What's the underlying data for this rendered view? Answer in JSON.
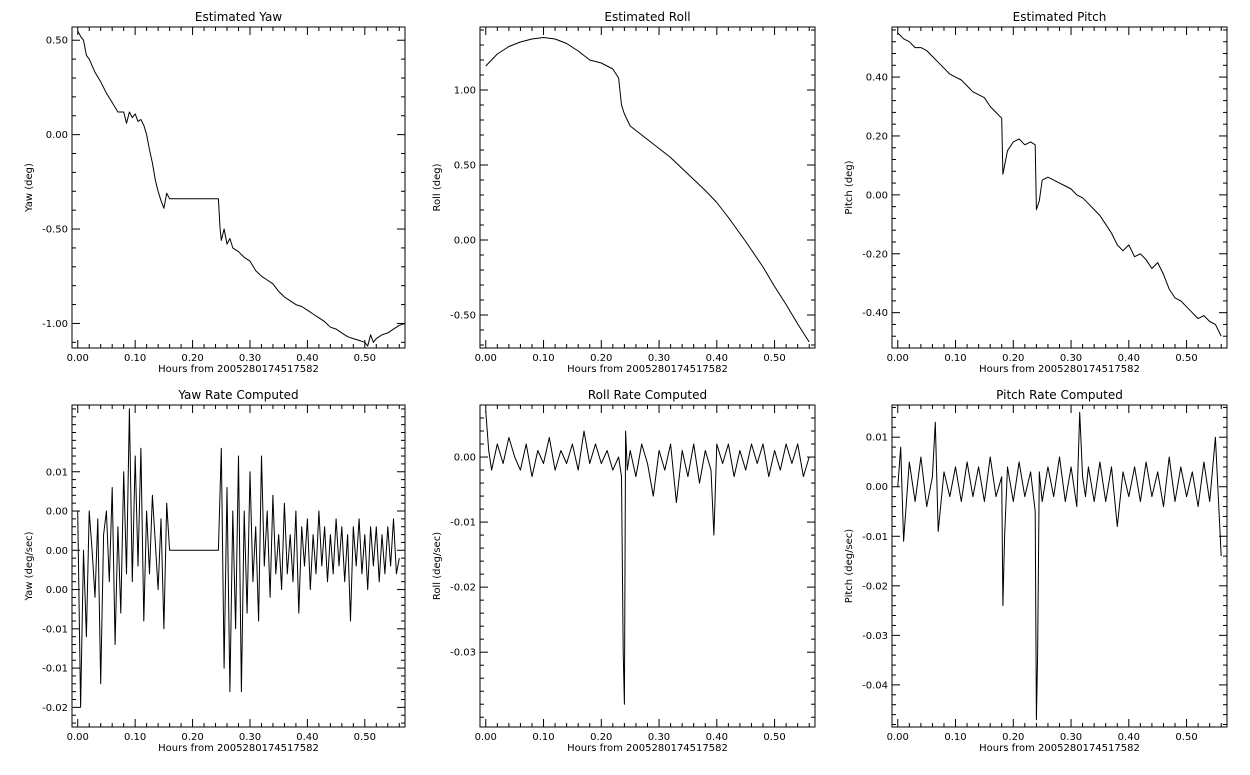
{
  "chart_data": [
    {
      "type": "line",
      "title": "Estimated Yaw",
      "xlabel": "Hours from 2005280174517582",
      "ylabel": "Yaw (deg)",
      "xlim": [
        -0.01,
        0.57
      ],
      "ylim": [
        -1.13,
        0.57
      ],
      "xticks": [
        0.0,
        0.1,
        0.2,
        0.3,
        0.4,
        0.5
      ],
      "xtick_labels": [
        "0.00",
        "0.10",
        "0.20",
        "0.30",
        "0.40",
        "0.50"
      ],
      "yticks": [
        -1.0,
        -0.5,
        0.0,
        0.5
      ],
      "ytick_labels": [
        "-1.00",
        "-0.50",
        "0.00",
        "0.50"
      ],
      "series": [
        {
          "x": [
            0.0,
            0.005,
            0.01,
            0.015,
            0.02,
            0.03,
            0.04,
            0.05,
            0.06,
            0.07,
            0.08,
            0.085,
            0.09,
            0.095,
            0.1,
            0.105,
            0.11,
            0.115,
            0.12,
            0.125,
            0.13,
            0.135,
            0.14,
            0.145,
            0.15,
            0.155,
            0.16,
            0.2,
            0.245,
            0.248,
            0.25,
            0.255,
            0.26,
            0.265,
            0.27,
            0.28,
            0.29,
            0.3,
            0.31,
            0.32,
            0.33,
            0.34,
            0.35,
            0.36,
            0.37,
            0.38,
            0.39,
            0.4,
            0.41,
            0.42,
            0.43,
            0.44,
            0.45,
            0.46,
            0.47,
            0.48,
            0.49,
            0.5,
            0.505,
            0.51,
            0.515,
            0.52,
            0.53,
            0.54,
            0.55,
            0.56,
            0.57
          ],
          "y": [
            0.55,
            0.52,
            0.5,
            0.42,
            0.4,
            0.33,
            0.28,
            0.22,
            0.17,
            0.12,
            0.12,
            0.06,
            0.12,
            0.09,
            0.11,
            0.07,
            0.08,
            0.05,
            0.0,
            -0.08,
            -0.15,
            -0.24,
            -0.3,
            -0.35,
            -0.39,
            -0.31,
            -0.34,
            -0.34,
            -0.34,
            -0.5,
            -0.56,
            -0.5,
            -0.58,
            -0.55,
            -0.6,
            -0.62,
            -0.65,
            -0.67,
            -0.72,
            -0.75,
            -0.77,
            -0.79,
            -0.83,
            -0.86,
            -0.88,
            -0.9,
            -0.91,
            -0.93,
            -0.95,
            -0.97,
            -0.99,
            -1.02,
            -1.03,
            -1.05,
            -1.07,
            -1.08,
            -1.09,
            -1.1,
            -1.12,
            -1.06,
            -1.1,
            -1.08,
            -1.06,
            -1.05,
            -1.03,
            -1.01,
            -1.0
          ]
        }
      ]
    },
    {
      "type": "line",
      "title": "Estimated Roll",
      "xlabel": "Hours from 2005280174517582",
      "ylabel": "Roll (deg)",
      "xlim": [
        -0.01,
        0.57
      ],
      "ylim": [
        -0.72,
        1.42
      ],
      "xticks": [
        0.0,
        0.1,
        0.2,
        0.3,
        0.4,
        0.5
      ],
      "xtick_labels": [
        "0.00",
        "0.10",
        "0.20",
        "0.30",
        "0.40",
        "0.50"
      ],
      "yticks": [
        -0.5,
        0.0,
        0.5,
        1.0
      ],
      "ytick_labels": [
        "-0.50",
        "0.00",
        "0.50",
        "1.00"
      ],
      "series": [
        {
          "x": [
            0.0,
            0.02,
            0.04,
            0.06,
            0.08,
            0.1,
            0.12,
            0.14,
            0.16,
            0.18,
            0.2,
            0.22,
            0.23,
            0.235,
            0.24,
            0.25,
            0.28,
            0.3,
            0.32,
            0.35,
            0.38,
            0.4,
            0.42,
            0.45,
            0.48,
            0.5,
            0.52,
            0.54,
            0.56
          ],
          "y": [
            1.16,
            1.24,
            1.29,
            1.32,
            1.34,
            1.35,
            1.34,
            1.31,
            1.26,
            1.2,
            1.18,
            1.14,
            1.08,
            0.9,
            0.84,
            0.76,
            0.67,
            0.61,
            0.55,
            0.44,
            0.33,
            0.25,
            0.15,
            -0.01,
            -0.18,
            -0.31,
            -0.43,
            -0.56,
            -0.68
          ]
        }
      ]
    },
    {
      "type": "line",
      "title": "Estimated Pitch",
      "xlabel": "Hours from 2005280174517582",
      "ylabel": "Pitch (deg)",
      "xlim": [
        -0.01,
        0.57
      ],
      "ylim": [
        -0.52,
        0.57
      ],
      "xticks": [
        0.0,
        0.1,
        0.2,
        0.3,
        0.4,
        0.5
      ],
      "xtick_labels": [
        "0.00",
        "0.10",
        "0.20",
        "0.30",
        "0.40",
        "0.50"
      ],
      "yticks": [
        -0.4,
        -0.2,
        0.0,
        0.2,
        0.4
      ],
      "ytick_labels": [
        "-0.40",
        "-0.20",
        "0.00",
        "0.20",
        "0.40"
      ],
      "series": [
        {
          "x": [
            0.0,
            0.01,
            0.02,
            0.03,
            0.04,
            0.05,
            0.06,
            0.07,
            0.08,
            0.09,
            0.1,
            0.11,
            0.12,
            0.13,
            0.14,
            0.15,
            0.16,
            0.17,
            0.18,
            0.182,
            0.185,
            0.19,
            0.2,
            0.21,
            0.22,
            0.23,
            0.238,
            0.24,
            0.245,
            0.25,
            0.26,
            0.27,
            0.28,
            0.29,
            0.3,
            0.31,
            0.32,
            0.33,
            0.34,
            0.35,
            0.36,
            0.37,
            0.38,
            0.39,
            0.4,
            0.41,
            0.42,
            0.43,
            0.44,
            0.45,
            0.46,
            0.47,
            0.48,
            0.49,
            0.5,
            0.51,
            0.52,
            0.53,
            0.54,
            0.55,
            0.56
          ],
          "y": [
            0.55,
            0.53,
            0.52,
            0.5,
            0.5,
            0.49,
            0.47,
            0.45,
            0.43,
            0.41,
            0.4,
            0.39,
            0.37,
            0.35,
            0.34,
            0.33,
            0.3,
            0.28,
            0.26,
            0.07,
            0.1,
            0.15,
            0.18,
            0.19,
            0.17,
            0.18,
            0.17,
            -0.05,
            -0.02,
            0.05,
            0.06,
            0.05,
            0.04,
            0.03,
            0.02,
            0.0,
            -0.01,
            -0.03,
            -0.05,
            -0.07,
            -0.1,
            -0.13,
            -0.17,
            -0.19,
            -0.17,
            -0.21,
            -0.2,
            -0.22,
            -0.25,
            -0.23,
            -0.27,
            -0.32,
            -0.35,
            -0.36,
            -0.38,
            -0.4,
            -0.42,
            -0.41,
            -0.43,
            -0.44,
            -0.48
          ]
        }
      ]
    },
    {
      "type": "line",
      "title": "Yaw Rate Computed",
      "xlabel": "Hours from 2005280174517582",
      "ylabel": "Yaw (deg/sec)",
      "xlim": [
        -0.01,
        0.57
      ],
      "ylim": [
        -0.0225,
        0.0185
      ],
      "xticks": [
        0.0,
        0.1,
        0.2,
        0.3,
        0.4,
        0.5
      ],
      "xtick_labels": [
        "0.00",
        "0.10",
        "0.20",
        "0.30",
        "0.40",
        "0.50"
      ],
      "yticks": [
        -0.02,
        -0.015,
        -0.01,
        -0.005,
        0.0,
        0.005,
        0.01
      ],
      "ytick_labels": [
        "-0.02",
        "-0.01",
        "-0.01",
        "0.00",
        "0.00",
        "0.00",
        "0.01"
      ],
      "series": [
        {
          "x": [
            0.0,
            0.005,
            0.01,
            0.015,
            0.02,
            0.025,
            0.03,
            0.035,
            0.04,
            0.045,
            0.05,
            0.055,
            0.06,
            0.065,
            0.07,
            0.075,
            0.08,
            0.085,
            0.09,
            0.095,
            0.1,
            0.105,
            0.11,
            0.115,
            0.12,
            0.125,
            0.13,
            0.135,
            0.14,
            0.145,
            0.15,
            0.155,
            0.16,
            0.2,
            0.245,
            0.25,
            0.255,
            0.26,
            0.265,
            0.27,
            0.275,
            0.28,
            0.285,
            0.29,
            0.295,
            0.3,
            0.305,
            0.31,
            0.315,
            0.32,
            0.325,
            0.33,
            0.335,
            0.34,
            0.345,
            0.35,
            0.355,
            0.36,
            0.365,
            0.37,
            0.375,
            0.38,
            0.385,
            0.39,
            0.395,
            0.4,
            0.405,
            0.41,
            0.415,
            0.42,
            0.425,
            0.43,
            0.435,
            0.44,
            0.445,
            0.45,
            0.455,
            0.46,
            0.465,
            0.47,
            0.475,
            0.48,
            0.485,
            0.49,
            0.495,
            0.5,
            0.505,
            0.51,
            0.515,
            0.52,
            0.525,
            0.53,
            0.535,
            0.54,
            0.545,
            0.55,
            0.555,
            0.56
          ],
          "y": [
            0.005,
            -0.02,
            0.0,
            -0.011,
            0.005,
            0.0,
            -0.006,
            0.004,
            -0.017,
            0.002,
            0.005,
            -0.004,
            0.008,
            -0.012,
            0.003,
            -0.008,
            0.01,
            -0.003,
            0.018,
            -0.004,
            0.012,
            -0.002,
            0.013,
            -0.009,
            0.005,
            -0.003,
            0.007,
            0.001,
            -0.005,
            0.004,
            -0.01,
            0.006,
            0.0,
            0.0,
            0.0,
            0.013,
            -0.015,
            0.008,
            -0.018,
            0.005,
            -0.01,
            0.012,
            -0.018,
            0.005,
            -0.008,
            0.01,
            -0.004,
            0.003,
            -0.009,
            0.012,
            -0.002,
            0.005,
            -0.006,
            0.007,
            -0.003,
            0.002,
            -0.005,
            0.006,
            -0.003,
            0.002,
            -0.004,
            0.005,
            -0.008,
            0.003,
            -0.002,
            0.004,
            -0.005,
            0.002,
            -0.003,
            0.005,
            -0.002,
            0.003,
            -0.004,
            0.002,
            -0.003,
            0.004,
            -0.002,
            0.003,
            -0.004,
            0.002,
            -0.009,
            0.003,
            -0.002,
            0.004,
            -0.003,
            0.002,
            -0.005,
            0.003,
            -0.002,
            0.003,
            -0.004,
            0.002,
            -0.003,
            0.003,
            -0.002,
            0.004,
            -0.003,
            -0.001
          ]
        }
      ]
    },
    {
      "type": "line",
      "title": "Roll Rate Computed",
      "xlabel": "Hours from 2005280174517582",
      "ylabel": "Roll (deg/sec)",
      "xlim": [
        -0.01,
        0.57
      ],
      "ylim": [
        -0.0415,
        0.008
      ],
      "xticks": [
        0.0,
        0.1,
        0.2,
        0.3,
        0.4,
        0.5
      ],
      "xtick_labels": [
        "0.00",
        "0.10",
        "0.20",
        "0.30",
        "0.40",
        "0.50"
      ],
      "yticks": [
        -0.03,
        -0.02,
        -0.01,
        0.0
      ],
      "ytick_labels": [
        "-0.03",
        "-0.02",
        "-0.01",
        "0.00"
      ],
      "series": [
        {
          "x": [
            0.0,
            0.005,
            0.01,
            0.02,
            0.03,
            0.04,
            0.05,
            0.06,
            0.07,
            0.08,
            0.09,
            0.1,
            0.11,
            0.12,
            0.13,
            0.14,
            0.15,
            0.16,
            0.17,
            0.18,
            0.19,
            0.2,
            0.21,
            0.22,
            0.23,
            0.235,
            0.238,
            0.24,
            0.242,
            0.245,
            0.25,
            0.26,
            0.27,
            0.28,
            0.29,
            0.3,
            0.31,
            0.32,
            0.33,
            0.34,
            0.35,
            0.36,
            0.37,
            0.38,
            0.39,
            0.395,
            0.4,
            0.41,
            0.42,
            0.43,
            0.44,
            0.45,
            0.46,
            0.47,
            0.48,
            0.49,
            0.5,
            0.51,
            0.52,
            0.53,
            0.54,
            0.55,
            0.56
          ],
          "y": [
            0.007,
            0.001,
            -0.002,
            0.002,
            -0.001,
            0.003,
            0.0,
            -0.002,
            0.002,
            -0.003,
            0.001,
            -0.001,
            0.003,
            -0.002,
            0.001,
            -0.001,
            0.002,
            -0.002,
            0.004,
            -0.001,
            0.002,
            -0.001,
            0.001,
            -0.002,
            0.0,
            -0.003,
            -0.03,
            -0.038,
            0.004,
            -0.002,
            0.001,
            -0.003,
            0.002,
            -0.001,
            -0.006,
            0.001,
            -0.002,
            0.002,
            -0.007,
            0.001,
            -0.003,
            0.002,
            -0.004,
            0.001,
            -0.002,
            -0.012,
            0.002,
            -0.001,
            0.002,
            -0.003,
            0.001,
            -0.002,
            0.002,
            -0.001,
            0.002,
            -0.003,
            0.001,
            -0.002,
            0.002,
            -0.001,
            0.002,
            -0.003,
            0.0
          ]
        }
      ]
    },
    {
      "type": "line",
      "title": "Pitch Rate Computed",
      "xlabel": "Hours from 2005280174517582",
      "ylabel": "Pitch (deg/sec)",
      "xlim": [
        -0.01,
        0.57
      ],
      "ylim": [
        -0.0485,
        0.0165
      ],
      "xticks": [
        0.0,
        0.1,
        0.2,
        0.3,
        0.4,
        0.5
      ],
      "xtick_labels": [
        "0.00",
        "0.10",
        "0.20",
        "0.30",
        "0.40",
        "0.50"
      ],
      "yticks": [
        -0.04,
        -0.03,
        -0.02,
        -0.01,
        0.0,
        0.01
      ],
      "ytick_labels": [
        "-0.04",
        "-0.03",
        "-0.02",
        "-0.01",
        "0.00",
        "0.01"
      ],
      "series": [
        {
          "x": [
            0.0,
            0.005,
            0.01,
            0.02,
            0.03,
            0.04,
            0.05,
            0.06,
            0.065,
            0.07,
            0.08,
            0.09,
            0.1,
            0.11,
            0.12,
            0.13,
            0.14,
            0.15,
            0.16,
            0.17,
            0.18,
            0.182,
            0.185,
            0.19,
            0.2,
            0.21,
            0.22,
            0.23,
            0.238,
            0.24,
            0.242,
            0.245,
            0.25,
            0.26,
            0.27,
            0.28,
            0.29,
            0.3,
            0.31,
            0.315,
            0.32,
            0.325,
            0.33,
            0.34,
            0.35,
            0.36,
            0.37,
            0.38,
            0.39,
            0.4,
            0.41,
            0.42,
            0.43,
            0.44,
            0.45,
            0.46,
            0.47,
            0.48,
            0.49,
            0.5,
            0.51,
            0.52,
            0.53,
            0.54,
            0.55,
            0.56
          ],
          "y": [
            0.0,
            0.008,
            -0.011,
            0.005,
            -0.003,
            0.006,
            -0.004,
            0.002,
            0.013,
            -0.009,
            0.003,
            -0.002,
            0.004,
            -0.003,
            0.005,
            -0.002,
            0.004,
            -0.003,
            0.006,
            -0.002,
            0.002,
            -0.024,
            -0.01,
            0.004,
            -0.003,
            0.005,
            -0.002,
            0.003,
            -0.005,
            -0.047,
            -0.034,
            0.003,
            -0.003,
            0.004,
            -0.002,
            0.006,
            -0.003,
            0.004,
            -0.004,
            0.015,
            0.002,
            -0.002,
            0.004,
            -0.003,
            0.005,
            -0.003,
            0.004,
            -0.008,
            0.003,
            -0.002,
            0.004,
            -0.003,
            0.005,
            -0.002,
            0.003,
            -0.004,
            0.006,
            -0.003,
            0.004,
            -0.002,
            0.003,
            -0.004,
            0.005,
            -0.003,
            0.01,
            -0.014
          ]
        }
      ]
    }
  ]
}
